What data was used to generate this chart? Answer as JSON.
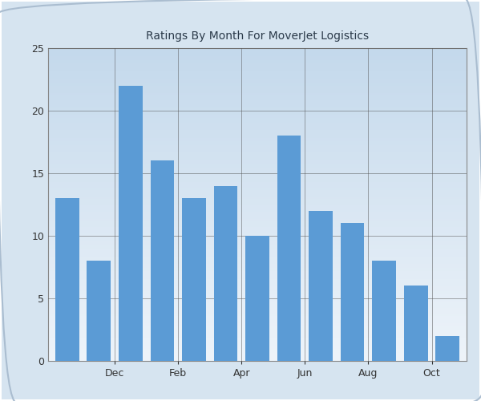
{
  "title": "Ratings By Month For MoverJet Logistics",
  "x_tick_labels": [
    "Dec",
    "Feb",
    "Apr",
    "Jun",
    "Aug",
    "Oct"
  ],
  "x_tick_positions": [
    1.5,
    3.5,
    5.5,
    7.5,
    9.5,
    11.5
  ],
  "values": [
    13,
    8,
    22,
    16,
    13,
    14,
    10,
    18,
    12,
    11,
    8,
    6,
    2
  ],
  "bar_color": "#5B9BD5",
  "ylim": [
    0,
    25
  ],
  "yticks": [
    0,
    5,
    10,
    15,
    20,
    25
  ],
  "fig_bg_color": "#D6E4F0",
  "plot_bg_top": "#C4D9EC",
  "plot_bg_bottom": "#EEF4FA",
  "grid_color": "#555555",
  "title_fontsize": 10,
  "tick_fontsize": 9,
  "title_color": "#2B3A4A",
  "tick_color": "#333333",
  "border_color": "#AABDD0"
}
